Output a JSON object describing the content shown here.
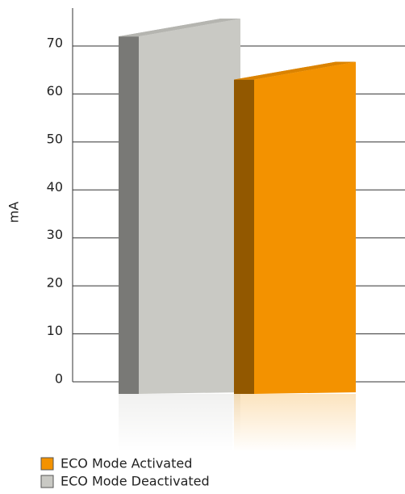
{
  "chart_data": {
    "type": "bar3d",
    "y_label": "mA",
    "series": [
      {
        "name": "ECO Mode Activated",
        "color": "#f39200",
        "values": [
          63
        ]
      },
      {
        "name": "ECO Mode Deactivated",
        "color": "#c9c9c4",
        "values": [
          72
        ]
      }
    ],
    "ylim": [
      0,
      70
    ],
    "yticks": [
      0,
      10,
      20,
      30,
      40,
      50,
      60,
      70
    ],
    "grid": true
  }
}
